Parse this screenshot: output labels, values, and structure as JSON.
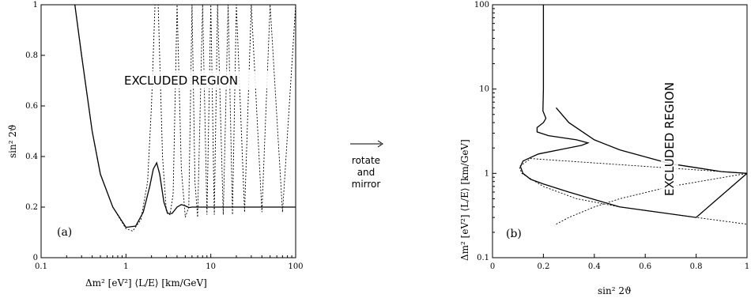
{
  "arrow_label": [
    "rotate",
    "and",
    "mirror"
  ],
  "chart_data": [
    {
      "type": "line",
      "panel_label": "(a)",
      "xlabel": "Δm² [eV²]   ⟨L/E⟩ [km/GeV]",
      "ylabel": "sin² 2ϑ",
      "xscale": "log",
      "xlim": [
        0.1,
        100
      ],
      "ylim": [
        0,
        1
      ],
      "xticks": [
        "0.1",
        "1",
        "10",
        "100"
      ],
      "yticks": [
        "0",
        "0.2",
        "0.4",
        "0.6",
        "0.8",
        "1"
      ],
      "annotation": "EXCLUDED REGION",
      "series": [
        {
          "style": "solid",
          "x": [
            0.25,
            0.3,
            0.4,
            0.5,
            0.7,
            1.0,
            1.3,
            1.6,
            1.9,
            2.1,
            2.3,
            2.5,
            2.8,
            3.1,
            3.5,
            4.0,
            4.5,
            5.0,
            5.5,
            6.0,
            7.0,
            10,
            20,
            50,
            100
          ],
          "y": [
            1.0,
            0.8,
            0.5,
            0.33,
            0.2,
            0.12,
            0.125,
            0.18,
            0.28,
            0.35,
            0.375,
            0.33,
            0.22,
            0.175,
            0.175,
            0.2,
            0.21,
            0.205,
            0.198,
            0.2,
            0.2,
            0.2,
            0.2,
            0.2,
            0.2
          ]
        },
        {
          "style": "dotted",
          "x": [
            0.25,
            0.3,
            0.4,
            0.5,
            0.7,
            1.0,
            1.2,
            1.5,
            1.8,
            2.0,
            2.2,
            2.4,
            2.7,
            3.0,
            3.3,
            3.6,
            4.0,
            4.5,
            5.0,
            5.5,
            6.0,
            6.5,
            7.0,
            8.0,
            9.0,
            10,
            11,
            12,
            14,
            16,
            18,
            20,
            25,
            30,
            40,
            50,
            70,
            100
          ],
          "y": [
            1.0,
            0.8,
            0.5,
            0.33,
            0.2,
            0.115,
            0.105,
            0.15,
            0.3,
            0.6,
            1.0,
            1.0,
            0.4,
            0.18,
            0.17,
            0.25,
            1.0,
            0.35,
            0.16,
            0.2,
            1.0,
            0.3,
            0.16,
            1.0,
            0.17,
            1.0,
            0.17,
            1.0,
            0.17,
            1.0,
            0.17,
            1.0,
            0.18,
            1.0,
            0.18,
            1.0,
            0.18,
            1.0
          ]
        }
      ]
    },
    {
      "type": "line",
      "panel_label": "(b)",
      "xlabel": "sin² 2ϑ",
      "ylabel": "Δm² [eV²]   ⟨L/E⟩ [km/GeV]",
      "yscale": "log",
      "xlim": [
        0,
        1
      ],
      "ylim": [
        0.1,
        100
      ],
      "xticks": [
        "0",
        "0.2",
        "0.4",
        "0.6",
        "0.8",
        "1"
      ],
      "yticks": [
        "0.1",
        "1",
        "10",
        "100"
      ],
      "annotation": "EXCLUDED REGION",
      "series": [
        {
          "style": "solid",
          "x": [
            0.25,
            0.3,
            0.4,
            0.5,
            0.7,
            0.9,
            1.0,
            0.8,
            0.5,
            0.3,
            0.2,
            0.15,
            0.12,
            0.11,
            0.12,
            0.18,
            0.28,
            0.35,
            0.375,
            0.33,
            0.22,
            0.175,
            0.175,
            0.2,
            0.21,
            0.198,
            0.2,
            0.2,
            0.2
          ],
          "y": [
            6.0,
            4.0,
            2.5,
            1.9,
            1.3,
            1.05,
            1.0,
            0.3,
            0.4,
            0.6,
            0.75,
            0.85,
            1.0,
            1.2,
            1.4,
            1.7,
            1.95,
            2.15,
            2.3,
            2.5,
            2.8,
            3.1,
            3.5,
            4.0,
            4.5,
            5.5,
            10,
            30,
            100
          ]
        },
        {
          "style": "dotted",
          "x": [
            0.25,
            0.3,
            0.4,
            0.5,
            0.7,
            1.0,
            0.15,
            0.105,
            0.115,
            0.2,
            0.33,
            0.5,
            0.8,
            1.0
          ],
          "y": [
            0.25,
            0.3,
            0.4,
            0.5,
            0.7,
            1.0,
            1.5,
            1.2,
            1.0,
            0.7,
            0.5,
            0.4,
            0.3,
            0.25
          ]
        }
      ]
    }
  ]
}
